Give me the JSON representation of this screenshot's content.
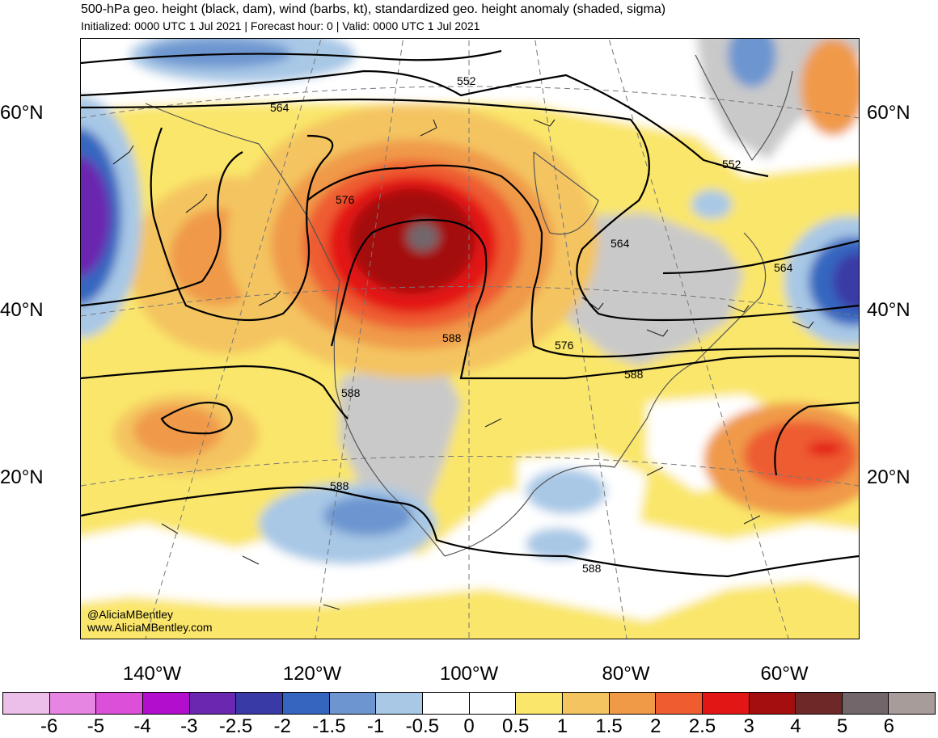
{
  "header": {
    "title": "500-hPa geo. height (black, dam), wind (barbs, kt), standardized geo. height anomaly (shaded, sigma)",
    "subtitle": "Initialized: 0000 UTC 1 Jul 2021 | Forecast hour: 0 | Valid: 0000 UTC 1 Jul 2021"
  },
  "map": {
    "lat_labels": [
      "60°N",
      "40°N",
      "20°N"
    ],
    "lon_labels": [
      "140°W",
      "120°W",
      "100°W",
      "80°W",
      "60°W"
    ],
    "contour_labels": [
      "552",
      "552",
      "564",
      "564",
      "564",
      "576",
      "576",
      "588",
      "588",
      "588",
      "588",
      "588"
    ],
    "credit_handle": "@AliciaMBentley",
    "credit_url": "www.AliciaMBentley.com"
  },
  "colorbar": {
    "labels": [
      "-6",
      "-5",
      "-4",
      "-3",
      "-2.5",
      "-2",
      "-1.5",
      "-1",
      "-0.5",
      "0",
      "0.5",
      "1",
      "1.5",
      "2",
      "2.5",
      "3",
      "4",
      "5",
      "6"
    ],
    "colors": [
      "#ebbfe8",
      "#e685e2",
      "#dc4fd8",
      "#b10fcd",
      "#6a28b0",
      "#3a3aa6",
      "#3466c0",
      "#6d96d0",
      "#a8c8e6",
      "#ffffff",
      "#ffffff",
      "#fae66a",
      "#f4c460",
      "#f09a48",
      "#ee5c30",
      "#e31616",
      "#a40e0e",
      "#6e2828",
      "#72666a",
      "#a79c9a"
    ]
  }
}
